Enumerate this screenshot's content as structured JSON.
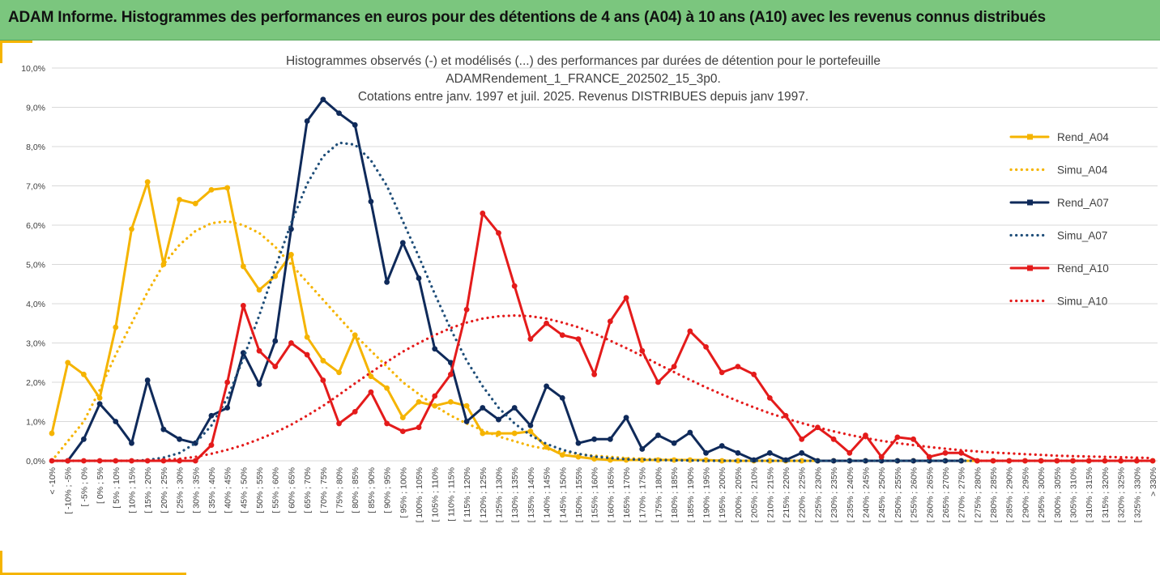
{
  "banner": {
    "title": "ADAM Informe. Histogrammes des performances en euros pour des détentions de 4 ans (A04) à 10 ans (A10) avec les revenus connus distribués"
  },
  "colors": {
    "banner_bg": "#7bc67e",
    "accent_corner": "#f5b400",
    "grid": "#d9d9d9",
    "axis_text": "#404040",
    "title_text": "#404040"
  },
  "chart_data": {
    "type": "line",
    "title_lines": [
      "Histogrammes observés (-) et modélisés (...) des performances par durées de détention pour le portefeuille",
      "ADAMRendement_1_FRANCE_202502_15_3p0.",
      "Cotations entre janv. 1997 et juil. 2025. Revenus DISTRIBUES depuis janv 1997."
    ],
    "ylim": [
      0,
      10
    ],
    "y_ticks": [
      "0,0%",
      "1,0%",
      "2,0%",
      "3,0%",
      "4,0%",
      "5,0%",
      "6,0%",
      "7,0%",
      "8,0%",
      "9,0%",
      "10,0%"
    ],
    "grid": "horizontal",
    "legend_position": "right",
    "categories": [
      "< -10%",
      "[ -10% ; -5%",
      "[ -5% ; 0%",
      "[ 0% ; 5%",
      "[ 5% ; 10%",
      "[ 10% ; 15%",
      "[ 15% ; 20%",
      "[ 20% ; 25%",
      "[ 25% ; 30%",
      "[ 30% ; 35%",
      "[ 35% ; 40%",
      "[ 40% ; 45%",
      "[ 45% ; 50%",
      "[ 50% ; 55%",
      "[ 55% ; 60%",
      "[ 60% ; 65%",
      "[ 65% ; 70%",
      "[ 70% ; 75%",
      "[ 75% ; 80%",
      "[ 80% ; 85%",
      "[ 85% ; 90%",
      "[ 90% ; 95%",
      "[ 95% ; 100%",
      "[ 100% ; 105%",
      "[ 105% ; 110%",
      "[ 110% ; 115%",
      "[ 115% ; 120%",
      "[ 120% ; 125%",
      "[ 125% ; 130%",
      "[ 130% ; 135%",
      "[ 135% ; 140%",
      "[ 140% ; 145%",
      "[ 145% ; 150%",
      "[ 150% ; 155%",
      "[ 155% ; 160%",
      "[ 160% ; 165%",
      "[ 165% ; 170%",
      "[ 170% ; 175%",
      "[ 175% ; 180%",
      "[ 180% ; 185%",
      "[ 185% ; 190%",
      "[ 190% ; 195%",
      "[ 195% ; 200%",
      "[ 200% ; 205%",
      "[ 205% ; 210%",
      "[ 210% ; 215%",
      "[ 215% ; 220%",
      "[ 220% ; 225%",
      "[ 225% ; 230%",
      "[ 230% ; 235%",
      "[ 235% ; 240%",
      "[ 240% ; 245%",
      "[ 245% ; 250%",
      "[ 250% ; 255%",
      "[ 255% ; 260%",
      "[ 260% ; 265%",
      "[ 265% ; 270%",
      "[ 270% ; 275%",
      "[ 275% ; 280%",
      "[ 280% ; 285%",
      "[ 285% ; 290%",
      "[ 290% ; 295%",
      "[ 295% ; 300%",
      "[ 300% ; 305%",
      "[ 305% ; 310%",
      "[ 310% ; 315%",
      "[ 315% ; 320%",
      "[ 320% ; 325%",
      "[ 325% ; 330%",
      "> 330%"
    ],
    "series": [
      {
        "name": "Rend_A04",
        "color": "#f5b400",
        "style": "solid",
        "markers": true,
        "values": [
          0.7,
          2.5,
          2.2,
          1.6,
          3.4,
          5.9,
          7.1,
          5.0,
          6.65,
          6.55,
          6.9,
          6.95,
          4.95,
          4.35,
          4.7,
          5.25,
          3.15,
          2.55,
          2.25,
          3.2,
          2.15,
          1.85,
          1.1,
          1.5,
          1.4,
          1.5,
          1.4,
          0.7,
          0.7,
          0.7,
          0.75,
          0.35,
          0.15,
          0.1,
          0.05,
          0.02,
          0.02,
          0.02,
          0.02,
          0.02,
          0.02,
          0.02,
          0,
          0,
          0,
          0,
          0,
          0,
          0,
          0,
          0,
          0,
          0,
          0,
          0,
          0,
          0,
          0,
          0,
          0,
          0,
          0,
          0,
          0,
          0,
          0,
          0,
          0,
          0,
          0
        ]
      },
      {
        "name": "Simu_A04",
        "color": "#f5b400",
        "style": "dotted",
        "markers": false,
        "values": [
          0.0,
          0.5,
          1.0,
          1.8,
          2.7,
          3.5,
          4.3,
          5.0,
          5.5,
          5.85,
          6.05,
          6.1,
          6.0,
          5.8,
          5.45,
          5.0,
          4.55,
          4.1,
          3.65,
          3.2,
          2.8,
          2.4,
          2.0,
          1.7,
          1.4,
          1.15,
          0.95,
          0.78,
          0.62,
          0.5,
          0.38,
          0.3,
          0.23,
          0.17,
          0.13,
          0.1,
          0.07,
          0.05,
          0.04,
          0.03,
          0.02,
          0.01,
          0.01,
          0,
          0,
          0,
          0,
          0,
          0,
          0,
          0,
          0,
          0,
          0,
          0,
          0,
          0,
          0,
          0,
          0,
          0,
          0,
          0,
          0,
          0,
          0,
          0,
          0,
          0,
          0
        ]
      },
      {
        "name": "Rend_A07",
        "color": "#0f2a5a",
        "style": "solid",
        "markers": true,
        "values": [
          null,
          0.0,
          0.55,
          1.45,
          1.0,
          0.45,
          2.05,
          0.8,
          0.55,
          0.45,
          1.15,
          1.35,
          2.75,
          1.95,
          3.05,
          5.9,
          8.65,
          9.2,
          8.85,
          8.55,
          6.6,
          4.55,
          5.55,
          4.65,
          2.85,
          2.5,
          1.0,
          1.35,
          1.05,
          1.35,
          0.9,
          1.9,
          1.6,
          0.45,
          0.55,
          0.55,
          1.1,
          0.3,
          0.65,
          0.45,
          0.72,
          0.2,
          0.38,
          0.2,
          0.02,
          0.2,
          0.02,
          0.2,
          0,
          0,
          0,
          0,
          0,
          0,
          0,
          0,
          0,
          0,
          null,
          null,
          null,
          null,
          null,
          null,
          null,
          null,
          null,
          null,
          null,
          null
        ]
      },
      {
        "name": "Simu_A07",
        "color": "#1f4e79",
        "style": "dotted",
        "markers": false,
        "values": [
          0,
          0,
          0,
          0,
          0,
          0,
          0.02,
          0.08,
          0.2,
          0.45,
          0.9,
          1.6,
          2.6,
          3.7,
          4.9,
          6.05,
          7.05,
          7.75,
          8.1,
          8.05,
          7.65,
          7.0,
          6.1,
          5.2,
          4.25,
          3.35,
          2.55,
          1.9,
          1.35,
          0.95,
          0.65,
          0.43,
          0.28,
          0.18,
          0.11,
          0.07,
          0.04,
          0.03,
          0.02,
          0.01,
          0.01,
          0,
          0,
          0,
          0,
          0,
          0,
          0,
          0,
          0,
          0,
          0,
          0,
          0,
          0,
          0,
          0,
          0,
          0,
          0,
          0,
          0,
          0,
          0,
          0,
          0,
          0,
          0,
          0,
          0
        ]
      },
      {
        "name": "Rend_A10",
        "color": "#e41b1b",
        "style": "solid",
        "markers": true,
        "values": [
          0,
          0,
          0,
          0,
          0,
          0,
          0,
          0,
          0,
          0,
          0.4,
          2.0,
          3.95,
          2.8,
          2.4,
          3.0,
          2.7,
          2.05,
          0.95,
          1.25,
          1.75,
          0.95,
          0.75,
          0.85,
          1.65,
          2.2,
          3.85,
          6.3,
          5.8,
          4.45,
          3.1,
          3.5,
          3.2,
          3.1,
          2.2,
          3.55,
          4.15,
          2.8,
          2.0,
          2.4,
          3.3,
          2.9,
          2.25,
          2.4,
          2.2,
          1.6,
          1.15,
          0.55,
          0.85,
          0.55,
          0.2,
          0.65,
          0.1,
          0.6,
          0.55,
          0.1,
          0.2,
          0.2,
          0,
          0,
          0,
          0,
          0,
          0,
          0,
          0,
          0,
          0,
          0,
          0
        ]
      },
      {
        "name": "Simu_A10",
        "color": "#e41b1b",
        "style": "dotted",
        "markers": false,
        "values": [
          0,
          0,
          0,
          0,
          0,
          0,
          0,
          0.02,
          0.05,
          0.1,
          0.18,
          0.28,
          0.4,
          0.55,
          0.72,
          0.92,
          1.15,
          1.4,
          1.68,
          1.97,
          2.25,
          2.52,
          2.78,
          3.0,
          3.2,
          3.38,
          3.52,
          3.62,
          3.68,
          3.7,
          3.68,
          3.62,
          3.52,
          3.4,
          3.24,
          3.06,
          2.87,
          2.67,
          2.46,
          2.26,
          2.06,
          1.87,
          1.69,
          1.52,
          1.36,
          1.21,
          1.08,
          0.96,
          0.85,
          0.75,
          0.66,
          0.58,
          0.51,
          0.45,
          0.4,
          0.35,
          0.31,
          0.27,
          0.24,
          0.21,
          0.19,
          0.17,
          0.15,
          0.13,
          0.12,
          0.11,
          0.1,
          0.09,
          0.08,
          0.07
        ]
      }
    ]
  }
}
